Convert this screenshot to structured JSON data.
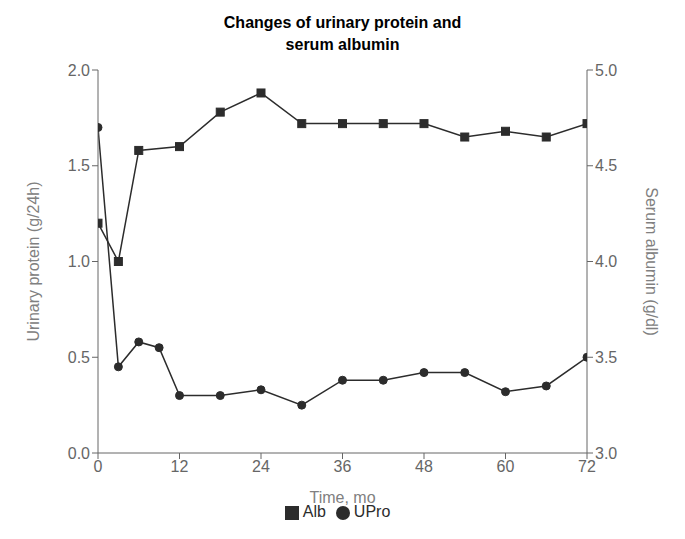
{
  "chart_data": {
    "type": "line",
    "title": "Changes of urinary protein and\nserum albumin",
    "xlabel": "Time, mo",
    "ylabel": "Urinary protein (g/24h)",
    "y2label": "Serum albumin (g/dl)",
    "xlim": [
      0,
      72
    ],
    "xticks": [
      0,
      12,
      24,
      36,
      48,
      60,
      72
    ],
    "ylim": [
      0,
      2
    ],
    "yticks": [
      {
        "value": 0,
        "label": "0.0"
      },
      0.5,
      {
        "value": 1,
        "label": "1.0"
      },
      1.5,
      {
        "value": 2,
        "label": "2.0"
      }
    ],
    "y2lim": [
      3,
      5
    ],
    "y2ticks": [
      {
        "value": 3,
        "label": "3.0"
      },
      3.5,
      {
        "value": 4,
        "label": "4.0"
      },
      4.5,
      {
        "value": 5,
        "label": "5.0"
      }
    ],
    "grid": false,
    "legend": "bottom",
    "series": [
      {
        "name": "Alb",
        "color": "#2c2c2c",
        "marker": "square",
        "axis": "y2",
        "x": [
          0,
          3,
          6,
          12,
          18,
          24,
          30,
          36,
          42,
          48,
          54,
          60,
          66,
          72
        ],
        "values": [
          4.2,
          4.0,
          4.58,
          4.6,
          4.78,
          4.88,
          4.72,
          4.72,
          4.72,
          4.72,
          4.65,
          4.68,
          4.65,
          4.72
        ]
      },
      {
        "name": "UPro",
        "color": "#2c2c2c",
        "marker": "circle",
        "x": [
          0,
          3,
          6,
          9,
          12,
          18,
          24,
          30,
          36,
          42,
          48,
          54,
          60,
          66,
          72
        ],
        "values": [
          1.7,
          0.45,
          0.58,
          0.55,
          0.3,
          0.3,
          0.33,
          0.25,
          0.38,
          0.38,
          0.42,
          0.42,
          0.32,
          0.35,
          0.5
        ]
      }
    ]
  }
}
